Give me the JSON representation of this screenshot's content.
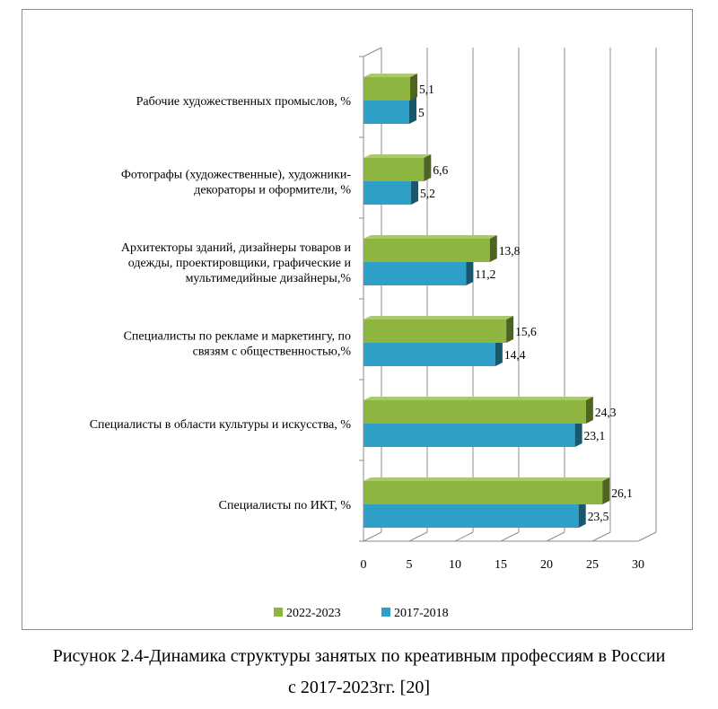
{
  "chart_data": {
    "type": "bar",
    "orientation": "horizontal",
    "three_d": true,
    "categories": [
      "Рабочие художественных промыслов, %",
      "Фотографы (художественные), художники-декораторы и оформители, %",
      "Архитекторы зданий, дизайнеры товаров и одежды, проектировщики, графические и мультимедийные дизайнеры,%",
      "Специалисты по рекламе и маркетингу, по связям с общественностью,%",
      "Специалисты в области культуры и искусства, %",
      "Специалисты по ИКТ, %"
    ],
    "category_lines": [
      [
        "Рабочие художественных промыслов, %"
      ],
      [
        "Фотографы (художественные), художники-",
        "декораторы и оформители, %"
      ],
      [
        "Архитекторы зданий, дизайнеры товаров и",
        "одежды, проектировщики, графические и",
        "мультимедийные дизайнеры,%"
      ],
      [
        "Специалисты по рекламе и маркетингу, по",
        "связям с общественностью,%"
      ],
      [
        "Специалисты в области культуры и искусства, %"
      ],
      [
        "Специалисты по ИКТ, %"
      ]
    ],
    "series": [
      {
        "name": "2022-2023",
        "color": "#8db53f",
        "values": [
          5.1,
          6.6,
          13.8,
          15.6,
          24.3,
          26.1
        ],
        "labels": [
          "5,1",
          "6,6",
          "13,8",
          "15,6",
          "24,3",
          "26,1"
        ]
      },
      {
        "name": "2017-2018",
        "color": "#2e9fc6",
        "values": [
          5,
          5.2,
          11.2,
          14.4,
          23.1,
          23.5
        ],
        "labels": [
          "5",
          "5,2",
          "11,2",
          "14,4",
          "23,1",
          "23,5"
        ]
      }
    ],
    "xlim": [
      0,
      30
    ],
    "xticks": [
      "0",
      "5",
      "10",
      "15",
      "20",
      "25",
      "30"
    ],
    "grid": true,
    "legend_position": "bottom"
  },
  "caption": {
    "line1": "Рисунок 2.4-Динамика структуры занятых по креативным профессиям в России",
    "line2": "с 2017-2023гг. [20]"
  }
}
